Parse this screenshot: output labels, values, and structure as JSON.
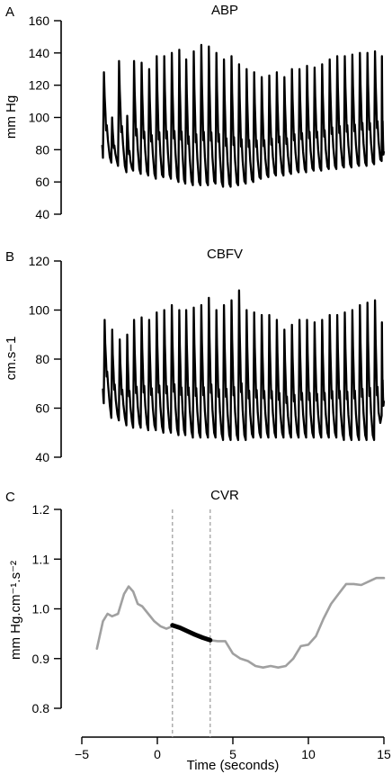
{
  "chart_data": [
    {
      "panel": "A",
      "type": "line",
      "title": "ABP",
      "ylabel": "mm Hg",
      "ylim": [
        40,
        160
      ],
      "yticks": [
        40,
        60,
        80,
        100,
        120,
        140,
        160
      ],
      "x_range": [
        -4,
        15
      ],
      "series": [
        {
          "color": "#000000",
          "beats": {
            "onset_x": [
              -3.6,
              -3.05,
              -2.6,
              -2.05,
              -1.6,
              -1.1,
              -0.6,
              -0.1,
              0.4,
              0.9,
              1.4,
              1.85,
              2.35,
              2.85,
              3.35,
              3.85,
              4.35,
              4.85,
              5.35,
              5.85,
              6.35,
              6.85,
              7.35,
              7.85,
              8.35,
              8.85,
              9.35,
              9.85,
              10.35,
              10.85,
              11.35,
              11.85,
              12.35,
              12.85,
              13.35,
              13.85,
              14.35,
              14.85
            ],
            "systolic": [
              128,
              100,
              135,
              101,
              135,
              134,
              130,
              138,
              138,
              140,
              142,
              136,
              141,
              145,
              144,
              140,
              136,
              138,
              133,
              130,
              128,
              125,
              126,
              128,
              125,
              130,
              130,
              132,
              131,
              133,
              136,
              138,
              138,
              139,
              140,
              140,
              141,
              138
            ],
            "diastolic": [
              75,
              72,
              70,
              66,
              67,
              65,
              64,
              62,
              63,
              62,
              60,
              59,
              58,
              58,
              58,
              59,
              57,
              57,
              58,
              59,
              60,
              62,
              63,
              64,
              64,
              65,
              66,
              66,
              67,
              67,
              68,
              68,
              69,
              69,
              70,
              70,
              71,
              73
            ],
            "start_value": 83
          }
        }
      ]
    },
    {
      "panel": "B",
      "type": "line",
      "title": "CBFV",
      "ylabel": "cm.s−1",
      "ylim": [
        40,
        120
      ],
      "yticks": [
        40,
        60,
        80,
        100,
        120
      ],
      "x_range": [
        -4,
        15
      ],
      "series": [
        {
          "color": "#000000",
          "beats": {
            "onset_x": [
              -3.55,
              -3.05,
              -2.55,
              -2.05,
              -1.6,
              -1.1,
              -0.6,
              -0.1,
              0.4,
              0.9,
              1.4,
              1.85,
              2.35,
              2.85,
              3.35,
              3.85,
              4.35,
              4.85,
              5.35,
              5.85,
              6.35,
              6.85,
              7.35,
              7.85,
              8.35,
              8.85,
              9.35,
              9.85,
              10.35,
              10.85,
              11.35,
              11.85,
              12.35,
              12.85,
              13.35,
              13.85,
              14.35,
              14.85
            ],
            "systolic": [
              96,
              92,
              88,
              90,
              96,
              97,
              96,
              99,
              100,
              102,
              100,
              100,
              101,
              102,
              105,
              100,
              102,
              104,
              108,
              100,
              99,
              98,
              98,
              96,
              92,
              94,
              96,
              96,
              95,
              96,
              98,
              98,
              99,
              100,
              102,
              103,
              104,
              95
            ],
            "diastolic": [
              62,
              56,
              55,
              53,
              52,
              52,
              51,
              51,
              50,
              50,
              49,
              49,
              48,
              48,
              48,
              48,
              47,
              47,
              47,
              47,
              48,
              48,
              48,
              48,
              48,
              48,
              48,
              48,
              48,
              48,
              48,
              48,
              47,
              47,
              47,
              47,
              47,
              57
            ],
            "start_value": 68
          }
        }
      ]
    },
    {
      "panel": "C",
      "type": "line",
      "title": "CVR",
      "ylabel": "mm Hg.cm⁻¹.s⁻²",
      "ylim": [
        0.8,
        1.2
      ],
      "yticks": [
        "0.8",
        "0.9",
        "1.0",
        "1.1",
        "1.2"
      ],
      "xlabel": "Time (seconds)",
      "xlim": [
        -5,
        15
      ],
      "xticks": [
        "−5",
        "0",
        "5",
        "10",
        "15"
      ],
      "vlines": [
        1.0,
        3.5
      ],
      "series": [
        {
          "color": "#a0a0a0",
          "x": [
            -4.0,
            -3.6,
            -3.3,
            -3.0,
            -2.6,
            -2.2,
            -1.9,
            -1.6,
            -1.3,
            -1.0,
            -0.6,
            -0.2,
            0.2,
            0.6,
            1.0,
            1.5,
            2.0,
            2.5,
            3.0,
            3.5,
            4.0,
            4.5,
            5.0,
            5.5,
            6.0,
            6.5,
            7.0,
            7.5,
            8.0,
            8.5,
            9.0,
            9.5,
            10.0,
            10.5,
            11.0,
            11.5,
            12.0,
            12.5,
            13.0,
            13.5,
            14.0,
            14.5,
            15.0
          ],
          "y": [
            0.92,
            0.975,
            0.99,
            0.985,
            0.99,
            1.03,
            1.045,
            1.035,
            1.01,
            1.005,
            0.99,
            0.975,
            0.965,
            0.96,
            0.965,
            0.96,
            0.955,
            0.948,
            0.942,
            0.937,
            0.935,
            0.935,
            0.91,
            0.9,
            0.895,
            0.885,
            0.882,
            0.885,
            0.882,
            0.885,
            0.9,
            0.925,
            0.928,
            0.945,
            0.98,
            1.01,
            1.03,
            1.05,
            1.05,
            1.048,
            1.055,
            1.062,
            1.062
          ]
        },
        {
          "color": "#000000",
          "x": [
            1.0,
            1.5,
            2.0,
            2.5,
            3.0,
            3.5
          ],
          "y": [
            0.967,
            0.962,
            0.955,
            0.948,
            0.942,
            0.937
          ]
        }
      ]
    }
  ]
}
